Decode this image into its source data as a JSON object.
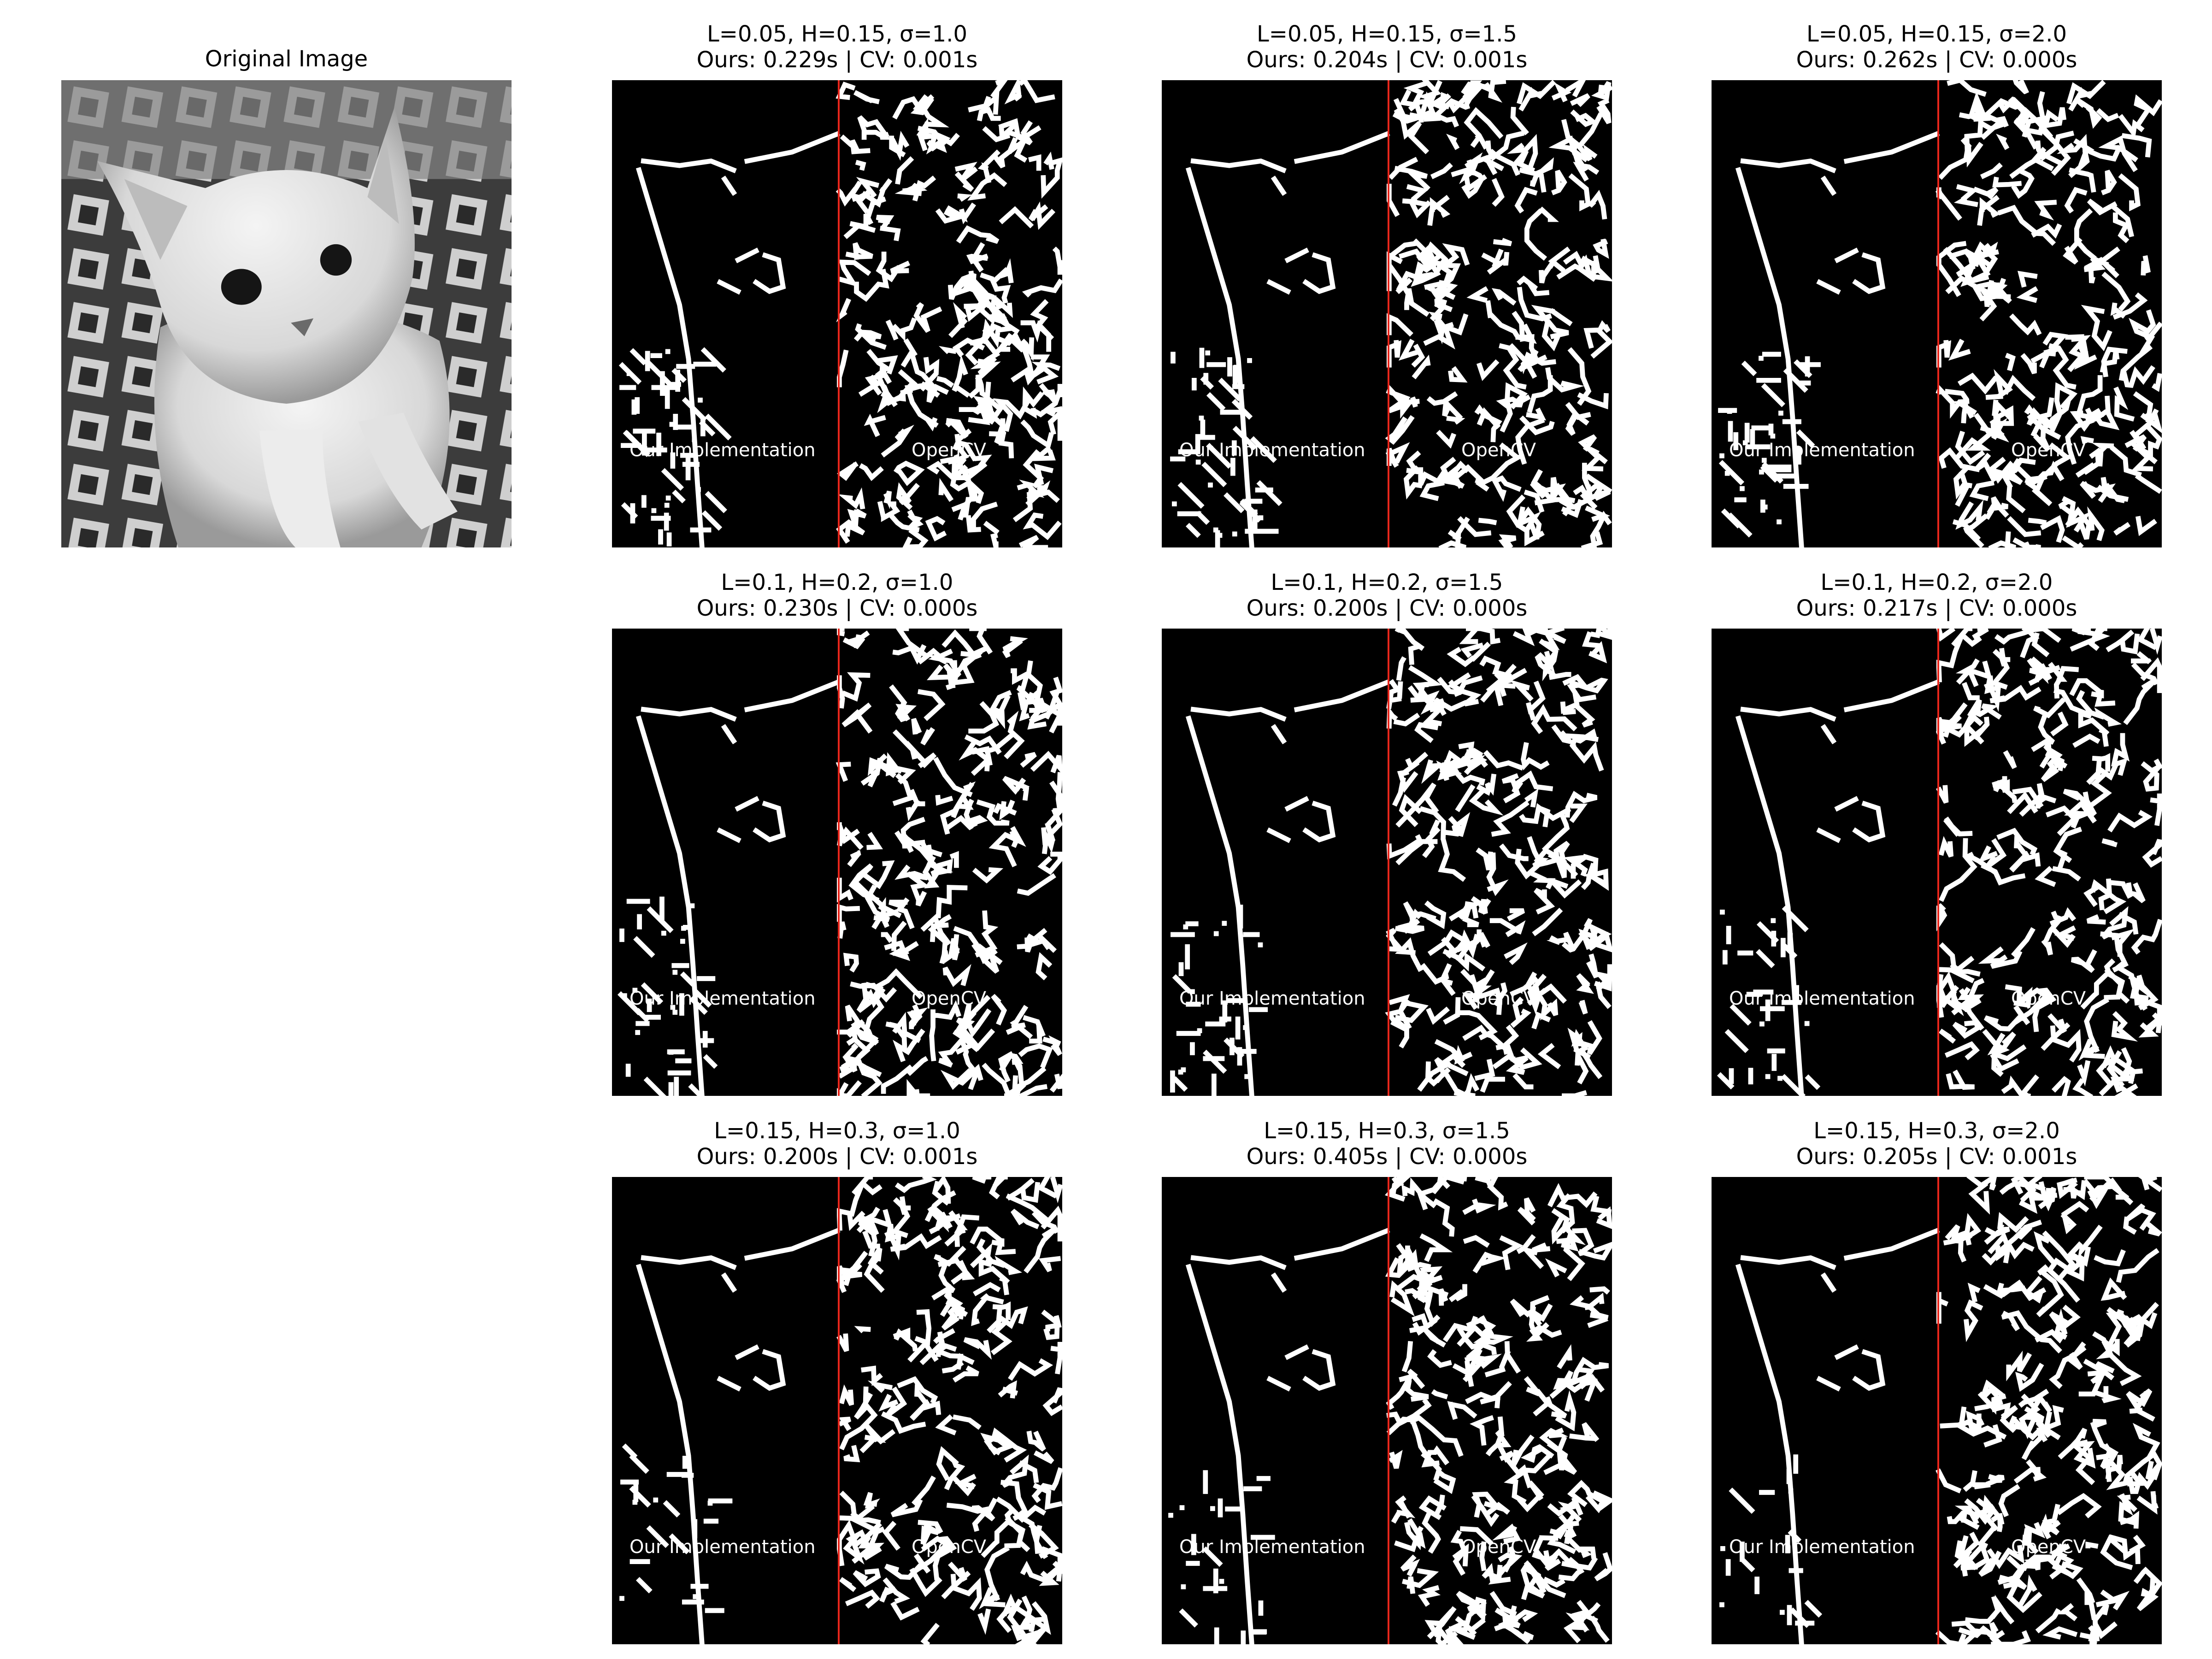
{
  "figure": {
    "original_title": "Original Image",
    "left_label": "Our Implementation",
    "right_label": "OpenCV",
    "divider_color": "#e8261b"
  },
  "panels": [
    {
      "title1": "L=0.05, H=0.15, σ=1.0",
      "title2": "Ours: 0.229s | CV: 0.001s"
    },
    {
      "title1": "L=0.05, H=0.15, σ=1.5",
      "title2": "Ours: 0.204s | CV: 0.001s"
    },
    {
      "title1": "L=0.05, H=0.15, σ=2.0",
      "title2": "Ours: 0.262s | CV: 0.000s"
    },
    {
      "title1": "L=0.1, H=0.2, σ=1.0",
      "title2": "Ours: 0.230s | CV: 0.000s"
    },
    {
      "title1": "L=0.1, H=0.2, σ=1.5",
      "title2": "Ours: 0.200s | CV: 0.000s"
    },
    {
      "title1": "L=0.1, H=0.2, σ=2.0",
      "title2": "Ours: 0.217s | CV: 0.000s"
    },
    {
      "title1": "L=0.15, H=0.3, σ=1.0",
      "title2": "Ours: 0.200s | CV: 0.001s"
    },
    {
      "title1": "L=0.15, H=0.3, σ=1.5",
      "title2": "Ours: 0.405s | CV: 0.000s"
    },
    {
      "title1": "L=0.15, H=0.3, σ=2.0",
      "title2": "Ours: 0.205s | CV: 0.001s"
    }
  ]
}
